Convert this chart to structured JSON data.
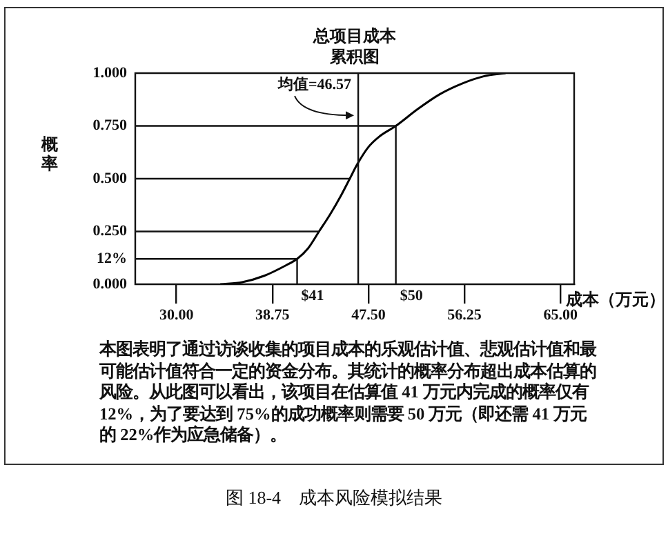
{
  "chart_data": {
    "type": "line",
    "title": "总项目成本",
    "subtitle": "累积图",
    "xlabel": "成本（万元）",
    "ylabel": "概率",
    "x": [
      34,
      36,
      38,
      40,
      41,
      42,
      43,
      44,
      45,
      45.8,
      46.5,
      47.5,
      48.5,
      50,
      52,
      54,
      56,
      58,
      60
    ],
    "series": [
      {
        "color": "#000000",
        "values": [
          0,
          0.01,
          0.04,
          0.09,
          0.12,
          0.17,
          0.25,
          0.33,
          0.42,
          0.5,
          0.57,
          0.65,
          0.7,
          0.75,
          0.83,
          0.9,
          0.95,
          0.985,
          1.0
        ]
      }
    ],
    "xlim": [
      26.25,
      66.25
    ],
    "xticks": [
      {
        "value": 30,
        "label": "30.00"
      },
      {
        "value": 38.75,
        "label": "38.75"
      },
      {
        "value": 47.5,
        "label": "47.50"
      },
      {
        "value": 56.25,
        "label": "56.25"
      },
      {
        "value": 65,
        "label": "65.00"
      }
    ],
    "ylim": [
      0,
      1
    ],
    "yticks": [
      {
        "value": 0,
        "label": "0.000"
      },
      {
        "value": 0.12,
        "label": "12%"
      },
      {
        "value": 0.25,
        "label": "0.250"
      },
      {
        "value": 0.5,
        "label": "0.500"
      },
      {
        "value": 0.75,
        "label": "0.750"
      },
      {
        "value": 1,
        "label": "1.000"
      }
    ],
    "ref_lines": [
      {
        "axis": "y",
        "value": 0.12
      },
      {
        "axis": "y",
        "value": 0.25
      },
      {
        "axis": "y",
        "value": 0.5
      },
      {
        "axis": "y",
        "value": 0.75
      },
      {
        "axis": "x",
        "value": 41,
        "label": "$41"
      },
      {
        "axis": "x",
        "value": 46.57
      },
      {
        "axis": "x",
        "value": 50,
        "label": "$50"
      }
    ],
    "annotations": [
      {
        "text": "均值=46.57",
        "x": 46.57,
        "y": 0.8
      },
      "本图表明了通过访谈收集的项目成本的乐观估计值、悲观估计值和最可能估计值符合一定的资金分布。其统计的概率分布超出成本估算的风险。从此图可以看出，该项目在估算值 41 万元内完成的概率仅有 12%，为了要达到 75%的成功概率则需要 50 万元（即还需 41 万元的 22%作为应急储备）。",
      "图 18-4　成本风险模拟结果"
    ],
    "legend": false,
    "marker": "none",
    "line_style": "solid",
    "grid": false
  }
}
